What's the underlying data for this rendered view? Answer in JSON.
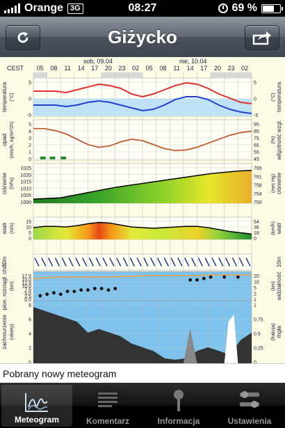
{
  "status_bar": {
    "carrier": "Orange",
    "network": "3G",
    "time": "08:27",
    "battery_percent": 69,
    "battery_label": "69 %",
    "icons": [
      "signal-bars-icon",
      "clock-icon",
      "battery-icon"
    ]
  },
  "nav": {
    "title": "Giżycko",
    "refresh_icon": "refresh-icon",
    "share_icon": "share-icon"
  },
  "meteogram": {
    "timezone": "CEST",
    "days": [
      "sob, 09.04",
      "nie, 10.04"
    ],
    "hours": [
      "05",
      "08",
      "11",
      "14",
      "17",
      "20",
      "23",
      "02",
      "05",
      "08",
      "11",
      "14",
      "17",
      "20",
      "23",
      "02"
    ],
    "panels": [
      {
        "left": "temperatura",
        "left_unit": "(°C)",
        "right": "temperatura",
        "right_unit": "(°C)",
        "left_ticks": [
          "5",
          "0",
          "-5"
        ],
        "right_ticks": [
          "5",
          "0",
          "-5"
        ]
      },
      {
        "left": "opad",
        "left_unit": "(mm/h, kg/m²/2h)",
        "right": "wilgotność wzgl.",
        "right_unit": "(%)",
        "left_ticks": [
          "5",
          "4",
          "3",
          "2",
          "1",
          "0"
        ],
        "right_ticks": [
          "95",
          "85",
          "75",
          "65",
          "55",
          "45"
        ]
      },
      {
        "left": "ciśnienie",
        "left_unit": "(hPa)",
        "right": "ciśnienie",
        "right_unit": "(mm Hg)",
        "left_ticks": [
          "1025",
          "1020",
          "1015",
          "1010",
          "1005",
          "1000"
        ],
        "right_ticks": [
          "765",
          "761",
          "758",
          "754",
          "750"
        ]
      },
      {
        "left": "wiatr",
        "left_unit": "(m/s)",
        "right": "wiatr",
        "right_unit": "(km/h)",
        "left_ticks": [
          "15",
          "10",
          "5",
          "0"
        ],
        "right_ticks": [
          "54",
          "36",
          "18",
          "0"
        ]
      },
      {
        "left": "10m",
        "left_unit": "",
        "right": "10m",
        "right_unit": "",
        "left_ticks": [],
        "right_ticks": []
      },
      {
        "left": "pion. rozciągł. chm.",
        "left_unit": "(km)",
        "right": "widzialność",
        "right_unit": "(km)",
        "left_ticks": [
          "17.5",
          "15.0",
          "12.5",
          "10.0",
          "7.5",
          "5.0",
          "2.5",
          "0.0"
        ],
        "right_ticks": [
          "20",
          "10",
          "5",
          "2",
          "1"
        ]
      },
      {
        "left": "zachmurzenie",
        "left_unit": "(oktety)",
        "right": "mgła",
        "right_unit": "(frakcja)",
        "left_ticks": [
          "8",
          "6",
          "4",
          "2",
          "0"
        ],
        "right_ticks": [
          "1",
          "0.75",
          "0.5",
          "0.25",
          "0"
        ]
      }
    ]
  },
  "status_message": "Pobrany nowy meteogram",
  "tabs": [
    {
      "label": "Meteogram",
      "icon": "meteogram-icon",
      "active": true
    },
    {
      "label": "Komentarz",
      "icon": "comment-icon",
      "active": false
    },
    {
      "label": "Informacja",
      "icon": "info-pin-icon",
      "active": false
    },
    {
      "label": "Ustawienia",
      "icon": "settings-icon",
      "active": false
    }
  ]
}
